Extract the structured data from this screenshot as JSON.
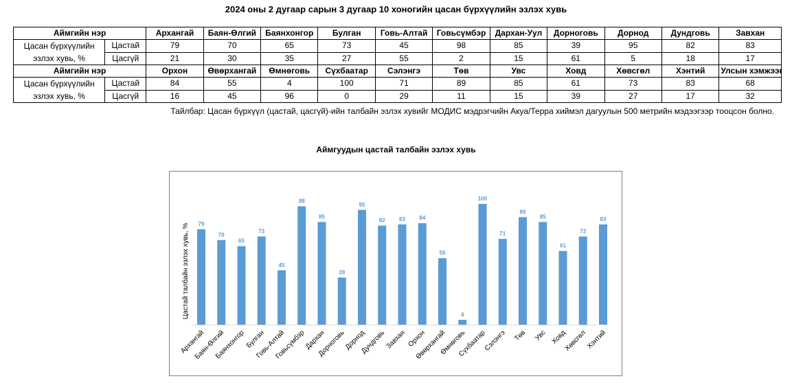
{
  "title": "2024 оны 2 дугаар сарын 3 дугаар 10 хоногийн цасан бүрхүүлийн эзлэх хувь",
  "table": {
    "header_label": "Аймгийн нэр",
    "row_label": "Цасан бүрхүүлийн эзлэх хувь, %",
    "snow_label": "Цастай",
    "nosnow_label": "Цасгүй",
    "blocks": [
      {
        "provinces": [
          "Архангай",
          "Баян-Өлгий",
          "Баянхонгор",
          "Булган",
          "Говь-Алтай",
          "Говьсүмбэр",
          "Дархан-Уул",
          "Дорноговь",
          "Дорнод",
          "Дундговь",
          "Завхан"
        ],
        "snow": [
          "79",
          "70",
          "65",
          "73",
          "45",
          "98",
          "85",
          "39",
          "95",
          "82",
          "83"
        ],
        "nosnow": [
          "21",
          "30",
          "35",
          "27",
          "55",
          "2",
          "15",
          "61",
          "5",
          "18",
          "17"
        ]
      },
      {
        "provinces": [
          "Орхон",
          "Өвөрхангай",
          "Өмнөговь",
          "Сүхбаатар",
          "Сэлэнгэ",
          "Төв",
          "Увс",
          "Ховд",
          "Хөвсгөл",
          "Хэнтий",
          "Улсын хэмжээнд"
        ],
        "snow": [
          "84",
          "55",
          "4",
          "100",
          "71",
          "89",
          "85",
          "61",
          "73",
          "83",
          "68"
        ],
        "nosnow": [
          "16",
          "45",
          "96",
          "0",
          "29",
          "11",
          "15",
          "39",
          "27",
          "17",
          "32"
        ]
      }
    ]
  },
  "note": "Тайлбар: Цасан бүрхүүл (цастай, цасгүй)-ийн талбайн эзлэх хувийг МОДИС мэдрэгчийн Акуа/Терра хиймэл дагуулын 500 метрийн мэдээгээр тооцсон болно.",
  "chart_data": {
    "type": "bar",
    "title": "Аймгуудын цастай талбайн эзлэх хувь",
    "ylabel": "Цастай талбайн эзлэх хувь, %",
    "xlabel": "",
    "categories": [
      "Архангай",
      "Баян-Өлгий",
      "Баянхонгор",
      "Булган",
      "Говь-Алтай",
      "Говьсүмбэр",
      "Дархан",
      "Дорноговь",
      "Дорнод",
      "Дундговь",
      "Завхан",
      "Орхон",
      "Өвөрхангай",
      "Өмнөговь",
      "Сүхбаатар",
      "Сэлэнгэ",
      "Төв",
      "Увс",
      "Ховд",
      "Хөвсгөл",
      "Хэнтий"
    ],
    "values": [
      79,
      70,
      65,
      73,
      45,
      98,
      85,
      39,
      95,
      82,
      83,
      84,
      55,
      4,
      100,
      71,
      89,
      85,
      61,
      73,
      83
    ],
    "ylim": [
      0,
      100
    ],
    "grid": false,
    "data_labels": true,
    "bar_color": "#5b9bd5",
    "label_color": "#5b9bd5"
  }
}
